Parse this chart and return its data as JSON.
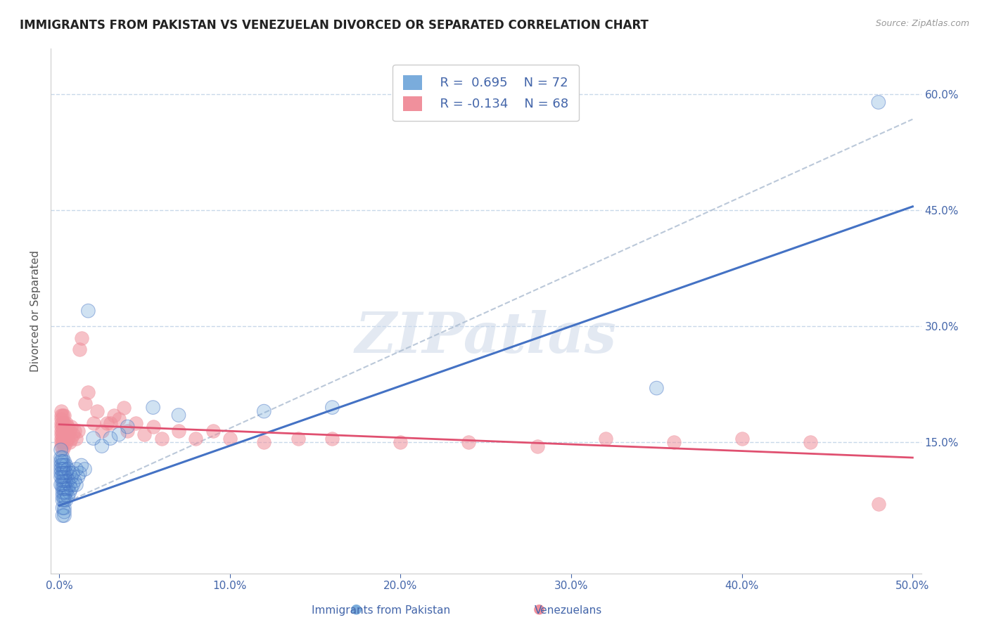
{
  "title": "IMMIGRANTS FROM PAKISTAN VS VENEZUELAN DIVORCED OR SEPARATED CORRELATION CHART",
  "source": "Source: ZipAtlas.com",
  "ylabel_left": "Divorced or Separated",
  "legend_labels": [
    "Immigrants from Pakistan",
    "Venezuelans"
  ],
  "legend_r": [
    "R =  0.695",
    "R = -0.134"
  ],
  "legend_n": [
    "N = 72",
    "N = 68"
  ],
  "scatter_blue_x": [
    0.001,
    0.001,
    0.001,
    0.001,
    0.001,
    0.001,
    0.001,
    0.001,
    0.002,
    0.002,
    0.002,
    0.002,
    0.002,
    0.002,
    0.002,
    0.002,
    0.002,
    0.002,
    0.002,
    0.002,
    0.002,
    0.002,
    0.003,
    0.003,
    0.003,
    0.003,
    0.003,
    0.003,
    0.003,
    0.003,
    0.003,
    0.003,
    0.003,
    0.003,
    0.003,
    0.003,
    0.004,
    0.004,
    0.004,
    0.004,
    0.004,
    0.004,
    0.005,
    0.005,
    0.005,
    0.005,
    0.006,
    0.006,
    0.006,
    0.007,
    0.007,
    0.008,
    0.008,
    0.009,
    0.01,
    0.01,
    0.011,
    0.012,
    0.013,
    0.015,
    0.017,
    0.02,
    0.025,
    0.03,
    0.035,
    0.04,
    0.055,
    0.07,
    0.12,
    0.16,
    0.35,
    0.48
  ],
  "scatter_blue_y": [
    0.095,
    0.105,
    0.11,
    0.115,
    0.12,
    0.125,
    0.13,
    0.14,
    0.055,
    0.065,
    0.075,
    0.08,
    0.085,
    0.09,
    0.095,
    0.1,
    0.105,
    0.11,
    0.115,
    0.12,
    0.125,
    0.13,
    0.055,
    0.06,
    0.065,
    0.075,
    0.08,
    0.085,
    0.09,
    0.095,
    0.1,
    0.105,
    0.11,
    0.115,
    0.12,
    0.125,
    0.075,
    0.085,
    0.09,
    0.1,
    0.11,
    0.12,
    0.08,
    0.09,
    0.1,
    0.115,
    0.085,
    0.095,
    0.11,
    0.09,
    0.105,
    0.095,
    0.11,
    0.1,
    0.095,
    0.115,
    0.105,
    0.11,
    0.12,
    0.115,
    0.32,
    0.155,
    0.145,
    0.155,
    0.16,
    0.17,
    0.195,
    0.185,
    0.19,
    0.195,
    0.22,
    0.59
  ],
  "scatter_pink_x": [
    0.001,
    0.001,
    0.001,
    0.001,
    0.001,
    0.001,
    0.001,
    0.001,
    0.001,
    0.001,
    0.002,
    0.002,
    0.002,
    0.002,
    0.002,
    0.002,
    0.002,
    0.002,
    0.003,
    0.003,
    0.003,
    0.003,
    0.003,
    0.004,
    0.004,
    0.004,
    0.005,
    0.005,
    0.006,
    0.006,
    0.007,
    0.007,
    0.008,
    0.009,
    0.01,
    0.011,
    0.012,
    0.013,
    0.015,
    0.017,
    0.02,
    0.022,
    0.025,
    0.028,
    0.03,
    0.032,
    0.035,
    0.038,
    0.04,
    0.045,
    0.05,
    0.055,
    0.06,
    0.07,
    0.08,
    0.09,
    0.1,
    0.12,
    0.14,
    0.16,
    0.2,
    0.24,
    0.28,
    0.32,
    0.36,
    0.4,
    0.44,
    0.48
  ],
  "scatter_pink_y": [
    0.145,
    0.15,
    0.155,
    0.16,
    0.165,
    0.17,
    0.175,
    0.18,
    0.185,
    0.19,
    0.14,
    0.15,
    0.155,
    0.16,
    0.165,
    0.17,
    0.175,
    0.185,
    0.145,
    0.155,
    0.165,
    0.175,
    0.185,
    0.15,
    0.16,
    0.175,
    0.155,
    0.17,
    0.15,
    0.165,
    0.155,
    0.17,
    0.16,
    0.165,
    0.155,
    0.165,
    0.27,
    0.285,
    0.2,
    0.215,
    0.175,
    0.19,
    0.165,
    0.175,
    0.175,
    0.185,
    0.18,
    0.195,
    0.165,
    0.175,
    0.16,
    0.17,
    0.155,
    0.165,
    0.155,
    0.165,
    0.155,
    0.15,
    0.155,
    0.155,
    0.15,
    0.15,
    0.145,
    0.155,
    0.15,
    0.155,
    0.15,
    0.07
  ],
  "blue_line_x": [
    0.0,
    0.5
  ],
  "blue_line_y": [
    0.068,
    0.455
  ],
  "pink_line_x": [
    0.0,
    0.5
  ],
  "pink_line_y": [
    0.173,
    0.13
  ],
  "dash_line_x": [
    0.0,
    0.5
  ],
  "dash_line_y": [
    0.068,
    0.568
  ],
  "xlim": [
    -0.005,
    0.505
  ],
  "ylim": [
    -0.02,
    0.66
  ],
  "xticks": [
    0.0,
    0.1,
    0.2,
    0.3,
    0.4,
    0.5
  ],
  "xtick_labels": [
    "0.0%",
    "10.0%",
    "20.0%",
    "30.0%",
    "40.0%",
    "50.0%"
  ],
  "yticks_right": [
    0.15,
    0.3,
    0.45,
    0.6
  ],
  "ytick_right_labels": [
    "15.0%",
    "30.0%",
    "45.0%",
    "60.0%"
  ],
  "blue_line_color": "#4472c4",
  "blue_dot_color": "#7aacdc",
  "pink_line_color": "#e05070",
  "pink_dot_color": "#f0909c",
  "dash_color": "#aabbd0",
  "grid_color": "#c8d8ea",
  "title_color": "#222222",
  "axis_label_color": "#555555",
  "tick_label_color": "#4466aa",
  "watermark_text": "ZIPatlas",
  "background_color": "#ffffff"
}
